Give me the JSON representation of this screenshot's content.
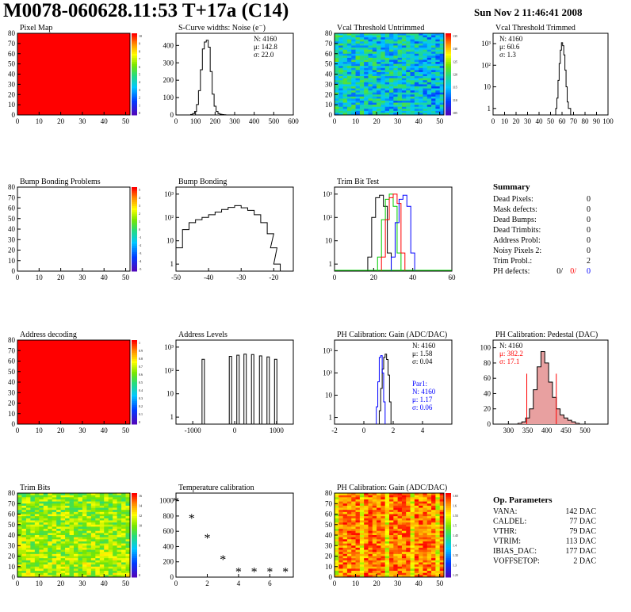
{
  "header": {
    "title": "M0078-060628.11:53 T+17a (C14)",
    "date": "Sun Nov  2 11:46:41 2008"
  },
  "colors": {
    "map_red": "#ff0000",
    "hist_line": "#000000",
    "red_series": "#ff0000",
    "green_series": "#00cc00",
    "blue_series": "#0000ff",
    "fill_pink": "#e8a0a0"
  },
  "chart_data": [
    {
      "id": "pixel_map",
      "type": "heatmap",
      "title": "Pixel Map",
      "x_ticks": [
        "0",
        "10",
        "20",
        "30",
        "40",
        "50"
      ],
      "y_ticks": [
        "0",
        "10",
        "20",
        "30",
        "40",
        "50",
        "60",
        "70",
        "80"
      ],
      "xlim": [
        0,
        52
      ],
      "ylim": [
        0,
        80
      ],
      "z_ticks": [
        "10",
        "9",
        "8",
        "7",
        "6",
        "5",
        "4",
        "3",
        "2",
        "1",
        "0"
      ],
      "fill": "uniform-red"
    },
    {
      "id": "scurve",
      "type": "line",
      "title": "S-Curve widths: Noise (e⁻)",
      "x_ticks": [
        "0",
        "100",
        "200",
        "300",
        "400",
        "500",
        "600"
      ],
      "y_ticks": [
        "0",
        "100",
        "200",
        "300",
        "400"
      ],
      "xlim": [
        0,
        600
      ],
      "ylim": [
        0,
        470
      ],
      "x": [
        70,
        80,
        90,
        100,
        110,
        120,
        130,
        140,
        150,
        160,
        170,
        180,
        190,
        200,
        210,
        220,
        230,
        240,
        250,
        260,
        270
      ],
      "y": [
        0,
        3,
        8,
        20,
        60,
        140,
        260,
        380,
        420,
        430,
        390,
        250,
        120,
        50,
        20,
        8,
        4,
        2,
        1,
        0,
        0
      ],
      "stats": {
        "n": "N: 4160",
        "mean": "μ: 142.8",
        "sigma": "σ: 22.0"
      }
    },
    {
      "id": "vcal_untrimmed",
      "type": "heatmap",
      "title": "Vcal Threshold Untrimmed",
      "x_ticks": [
        "0",
        "10",
        "20",
        "30",
        "40",
        "50"
      ],
      "y_ticks": [
        "0",
        "10",
        "20",
        "30",
        "40",
        "50",
        "60",
        "70",
        "80"
      ],
      "xlim": [
        0,
        52
      ],
      "ylim": [
        0,
        80
      ],
      "z_ticks": [
        "135",
        "130",
        "125",
        "120",
        "115",
        "110",
        "105"
      ],
      "palette": "green-blue-noisy"
    },
    {
      "id": "vcal_trimmed",
      "type": "line",
      "title": "Vcal Threshold Trimmed",
      "log_y": true,
      "x_ticks": [
        "0",
        "10",
        "20",
        "30",
        "40",
        "50",
        "60",
        "70",
        "80",
        "90",
        "100"
      ],
      "y_ticks": [
        "1",
        "10",
        "10²",
        "10³"
      ],
      "xlim": [
        0,
        100
      ],
      "ylim": [
        0.5,
        3000
      ],
      "x": [
        55,
        56,
        57,
        58,
        59,
        60,
        61,
        62,
        63,
        64,
        65,
        66,
        67
      ],
      "y": [
        1,
        3,
        20,
        120,
        500,
        1100,
        800,
        300,
        60,
        10,
        2,
        1,
        1
      ],
      "stats": {
        "n": "N: 4160",
        "mean": "μ: 60.6",
        "sigma": "σ:  1.3"
      }
    },
    {
      "id": "bump_problems",
      "type": "heatmap",
      "title": "Bump Bonding Problems",
      "x_ticks": [
        "0",
        "10",
        "20",
        "30",
        "40",
        "50"
      ],
      "y_ticks": [
        "0",
        "10",
        "20",
        "30",
        "40",
        "50",
        "60",
        "70",
        "80"
      ],
      "xlim": [
        0,
        52
      ],
      "ylim": [
        0,
        80
      ],
      "z_ticks": [
        "5",
        "4",
        "3",
        "2",
        "1",
        "0",
        "-1",
        "-2",
        "-3",
        "-4",
        "-5"
      ],
      "fill": "empty"
    },
    {
      "id": "bump_bonding",
      "type": "line",
      "title": "Bump Bonding",
      "log_y": true,
      "x_ticks": [
        "-50",
        "-40",
        "-30",
        "-20"
      ],
      "y_ticks": [
        "1",
        "10",
        "10²",
        "10³"
      ],
      "xlim": [
        -50,
        -14
      ],
      "ylim": [
        0.5,
        2000
      ],
      "x": [
        -49,
        -47,
        -45,
        -43,
        -41,
        -39,
        -37,
        -35,
        -33,
        -31,
        -29,
        -27,
        -25,
        -23,
        -21,
        -20,
        -19
      ],
      "y": [
        5,
        30,
        60,
        80,
        100,
        130,
        170,
        220,
        270,
        320,
        260,
        200,
        130,
        60,
        20,
        5,
        1
      ]
    },
    {
      "id": "trim_bit_test",
      "type": "line",
      "title": "Trim Bit Test",
      "log_y": true,
      "x_ticks": [
        "0",
        "20",
        "40",
        "60"
      ],
      "y_ticks": [
        "1",
        "10",
        "10²",
        "10³"
      ],
      "xlim": [
        0,
        60
      ],
      "ylim": [
        0.5,
        2000
      ],
      "series": [
        {
          "x": [
            18,
            20,
            22,
            24,
            26,
            28
          ],
          "y": [
            2,
            100,
            700,
            900,
            300,
            3
          ]
        },
        {
          "x": [
            23,
            25,
            27,
            29,
            31,
            33
          ],
          "y": [
            2,
            80,
            600,
            1000,
            300,
            3
          ]
        },
        {
          "x": [
            25,
            27,
            29,
            31,
            33,
            35
          ],
          "y": [
            2,
            80,
            700,
            1000,
            400,
            3
          ]
        },
        {
          "x": [
            30,
            32,
            34,
            36,
            38,
            40
          ],
          "y": [
            2,
            60,
            600,
            900,
            300,
            3
          ]
        }
      ]
    },
    {
      "id": "address_decoding",
      "type": "heatmap",
      "title": "Address decoding",
      "x_ticks": [
        "0",
        "10",
        "20",
        "30",
        "40",
        "50"
      ],
      "y_ticks": [
        "0",
        "10",
        "20",
        "30",
        "40",
        "50",
        "60",
        "70",
        "80"
      ],
      "xlim": [
        0,
        52
      ],
      "ylim": [
        0,
        80
      ],
      "z_ticks": [
        "1",
        "0.9",
        "0.8",
        "0.7",
        "0.6",
        "0.5",
        "0.4",
        "0.3",
        "0.2",
        "0.1",
        "0"
      ],
      "fill": "uniform-red"
    },
    {
      "id": "address_levels",
      "type": "bar",
      "title": "Address Levels",
      "log_y": true,
      "x_ticks": [
        "-1000",
        "0",
        "1000"
      ],
      "y_ticks": [
        "1",
        "10",
        "10²",
        "10³"
      ],
      "xlim": [
        -1400,
        1400
      ],
      "ylim": [
        0.5,
        2000
      ],
      "x": [
        -750,
        -100,
        80,
        250,
        430,
        620,
        800,
        980
      ],
      "y": [
        300,
        400,
        450,
        500,
        480,
        420,
        380,
        300
      ]
    },
    {
      "id": "ph_gain",
      "type": "line",
      "title": "PH Calibration: Gain (ADC/DAC)",
      "log_y": true,
      "x_ticks": [
        "-2",
        "0",
        "2",
        "4"
      ],
      "y_ticks": [
        "1",
        "10",
        "10²",
        "10³"
      ],
      "xlim": [
        -2,
        6
      ],
      "ylim": [
        0.5,
        3000
      ],
      "series": [
        {
          "x": [
            1.1,
            1.2,
            1.3,
            1.4,
            1.5,
            1.6,
            1.7,
            1.8
          ],
          "y": [
            2,
            20,
            150,
            500,
            700,
            400,
            80,
            5
          ]
        },
        {
          "x": [
            0.9,
            1.0,
            1.1,
            1.2,
            1.3,
            1.4
          ],
          "y": [
            3,
            40,
            500,
            600,
            100,
            5
          ]
        }
      ],
      "stats": {
        "n": "N: 4160",
        "mean": "μ: 1.58",
        "sigma": "σ: 0.04"
      },
      "stats2": {
        "label": "Par1:",
        "n": "N: 4160",
        "mean": "μ: 1.17",
        "sigma": "σ: 0.06"
      }
    },
    {
      "id": "ph_pedestal",
      "type": "line",
      "title": "PH Calibration: Pedestal (DAC)",
      "x_ticks": [
        "300",
        "350",
        "400",
        "450",
        "500"
      ],
      "y_ticks": [
        "0",
        "20",
        "40",
        "60",
        "80",
        "100"
      ],
      "xlim": [
        260,
        560
      ],
      "ylim": [
        0,
        110
      ],
      "x": [
        330,
        340,
        350,
        360,
        370,
        380,
        390,
        400,
        410,
        420,
        430,
        440,
        450,
        460,
        470,
        480
      ],
      "y": [
        1,
        3,
        8,
        20,
        45,
        75,
        95,
        80,
        55,
        35,
        20,
        12,
        8,
        5,
        3,
        1
      ],
      "cut_lines": [
        348,
        425
      ],
      "stats": {
        "n": "N: 4160",
        "mean": "μ: 382.2",
        "sigma": "σ: 17.1"
      }
    },
    {
      "id": "trim_bits",
      "type": "heatmap",
      "title": "Trim Bits",
      "x_ticks": [
        "0",
        "10",
        "20",
        "30",
        "40",
        "50"
      ],
      "y_ticks": [
        "0",
        "10",
        "20",
        "30",
        "40",
        "50",
        "60",
        "70",
        "80"
      ],
      "xlim": [
        0,
        52
      ],
      "ylim": [
        0,
        80
      ],
      "z_ticks": [
        "16",
        "14",
        "12",
        "10",
        "8",
        "6",
        "4",
        "2",
        "0"
      ],
      "palette": "green-yellow"
    },
    {
      "id": "temperature",
      "type": "scatter",
      "title": "Temperature calibration",
      "x_ticks": [
        "0",
        "2",
        "4",
        "6"
      ],
      "y_ticks": [
        "0",
        "200",
        "400",
        "600",
        "800",
        "1000"
      ],
      "xlim": [
        0,
        7.5
      ],
      "ylim": [
        0,
        1100
      ],
      "x": [
        0,
        1,
        2,
        3,
        4,
        5,
        6,
        7
      ],
      "y": [
        1000,
        780,
        520,
        240,
        80,
        80,
        80,
        80
      ]
    },
    {
      "id": "ph_gain_map",
      "type": "heatmap",
      "title": "PH Calibration: Gain (ADC/DAC)",
      "x_ticks": [
        "0",
        "10",
        "20",
        "30",
        "40",
        "50"
      ],
      "y_ticks": [
        "0",
        "10",
        "20",
        "30",
        "40",
        "50",
        "60",
        "70",
        "80"
      ],
      "xlim": [
        0,
        52
      ],
      "ylim": [
        0,
        80
      ],
      "z_ticks": [
        "1.65",
        "1.6",
        "1.55",
        "1.5",
        "1.45",
        "1.4",
        "1.35",
        "1.3",
        "1.25"
      ],
      "palette": "red-orange"
    }
  ],
  "summary": {
    "title": "Summary",
    "rows": [
      {
        "label": "Dead Pixels:",
        "value": "0"
      },
      {
        "label": "Mask defects:",
        "value": "0"
      },
      {
        "label": "Dead Bumps:",
        "value": "0"
      },
      {
        "label": "Dead Trimbits:",
        "value": "0"
      },
      {
        "label": "Address Probl:",
        "value": "0"
      },
      {
        "label": "Noisy Pixels 2:",
        "value": "0"
      },
      {
        "label": "Trim Probl.:",
        "value": "2"
      }
    ],
    "ph": {
      "label": "PH defects:",
      "v1": "0/",
      "v2": "0/",
      "v3": "0"
    }
  },
  "op_params": {
    "title": "Op. Parameters",
    "rows": [
      {
        "label": "VANA:",
        "value": "142 DAC"
      },
      {
        "label": "CALDEL:",
        "value": "77 DAC"
      },
      {
        "label": "VTHR:",
        "value": "79 DAC"
      },
      {
        "label": "VTRIM:",
        "value": "113 DAC"
      },
      {
        "label": "IBIAS_DAC:",
        "value": "177 DAC"
      },
      {
        "label": "VOFFSETOP:",
        "value": "2 DAC"
      }
    ]
  }
}
